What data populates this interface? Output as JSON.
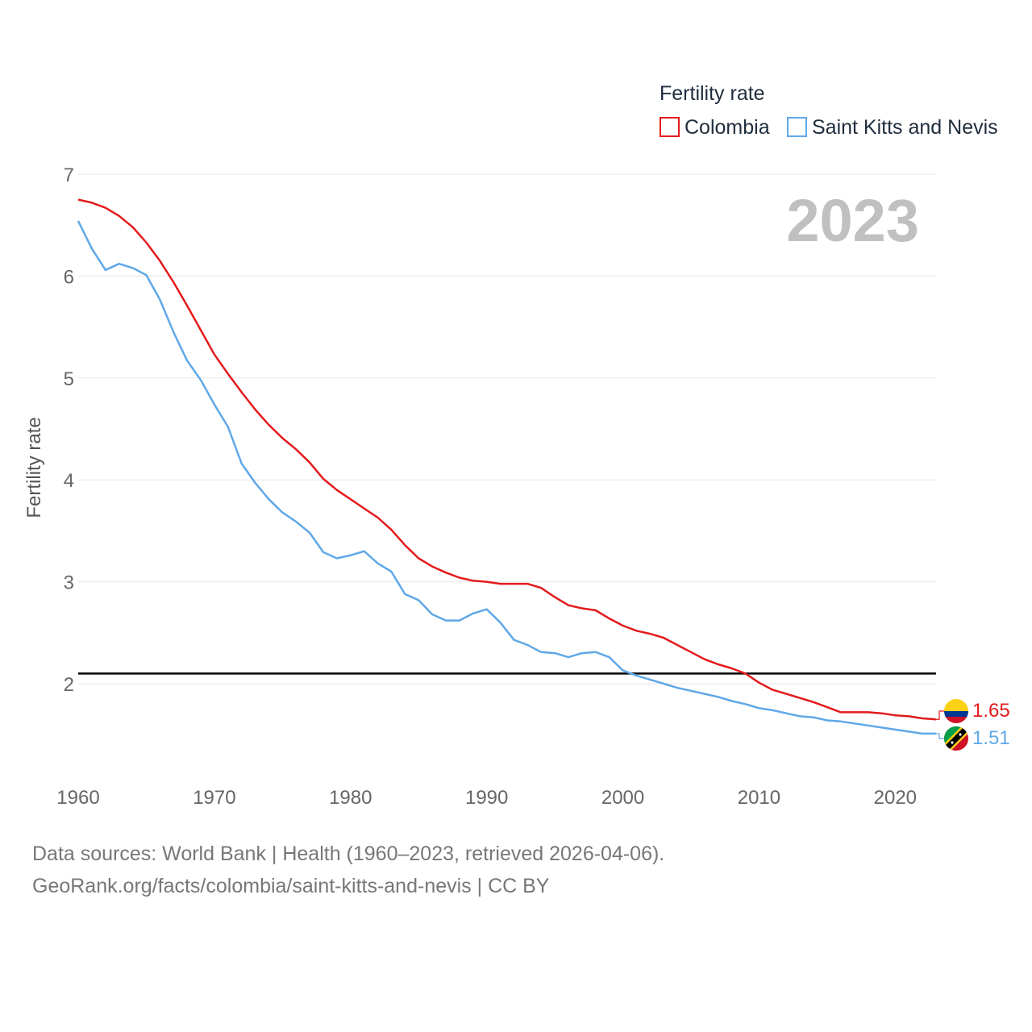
{
  "colors": {
    "colombia": "#e31a1c",
    "saint_kitts_and_nevis": "#5fa8e8",
    "grid": "#e6e6e6",
    "reference_line": "#000000"
  },
  "year_label": "2023",
  "source": {
    "line1": "Data sources: World Bank | Health (1960–2023, retrieved 2026-04-06).",
    "line2": "GeoRank.org/facts/colombia/saint-kitts-and-nevis | CC BY"
  },
  "chart_data": {
    "type": "line",
    "title": "Fertility rate",
    "xlabel": "",
    "ylabel": "Fertility rate",
    "xlim": [
      1960,
      2023
    ],
    "ylim": [
      1.3,
      7
    ],
    "grid": true,
    "legend_position": "top-right",
    "x_ticks": [
      1960,
      1970,
      1980,
      1990,
      2000,
      2010,
      2020
    ],
    "y_ticks": [
      2,
      3,
      4,
      5,
      6,
      7
    ],
    "reference_line": 2.1,
    "x": [
      1960,
      1961,
      1962,
      1963,
      1964,
      1965,
      1966,
      1967,
      1968,
      1969,
      1970,
      1971,
      1972,
      1973,
      1974,
      1975,
      1976,
      1977,
      1978,
      1979,
      1980,
      1981,
      1982,
      1983,
      1984,
      1985,
      1986,
      1987,
      1988,
      1989,
      1990,
      1991,
      1992,
      1993,
      1994,
      1995,
      1996,
      1997,
      1998,
      1999,
      2000,
      2001,
      2002,
      2003,
      2004,
      2005,
      2006,
      2007,
      2008,
      2009,
      2010,
      2011,
      2012,
      2013,
      2014,
      2015,
      2016,
      2017,
      2018,
      2019,
      2020,
      2021,
      2022,
      2023
    ],
    "series": [
      {
        "name": "Colombia",
        "color_key": "colombia",
        "end_value_label": "1.65",
        "values": [
          6.75,
          6.72,
          6.67,
          6.59,
          6.48,
          6.33,
          6.15,
          5.94,
          5.71,
          5.47,
          5.23,
          5.04,
          4.86,
          4.69,
          4.54,
          4.41,
          4.3,
          4.17,
          4.01,
          3.9,
          3.81,
          3.72,
          3.63,
          3.51,
          3.36,
          3.23,
          3.15,
          3.09,
          3.04,
          3.01,
          3.0,
          2.98,
          2.98,
          2.98,
          2.94,
          2.85,
          2.77,
          2.74,
          2.72,
          2.64,
          2.57,
          2.52,
          2.49,
          2.45,
          2.38,
          2.31,
          2.24,
          2.19,
          2.15,
          2.1,
          2.01,
          1.94,
          1.9,
          1.86,
          1.82,
          1.77,
          1.72,
          1.72,
          1.72,
          1.71,
          1.69,
          1.68,
          1.66,
          1.65
        ]
      },
      {
        "name": "Saint Kitts and Nevis",
        "color_key": "saint_kitts_and_nevis",
        "end_value_label": "1.51",
        "values": [
          6.54,
          6.27,
          6.06,
          6.12,
          6.08,
          6.01,
          5.77,
          5.45,
          5.17,
          4.98,
          4.74,
          4.52,
          4.16,
          3.97,
          3.81,
          3.68,
          3.59,
          3.48,
          3.29,
          3.23,
          3.26,
          3.3,
          3.18,
          3.1,
          2.88,
          2.82,
          2.68,
          2.62,
          2.62,
          2.69,
          2.73,
          2.6,
          2.43,
          2.38,
          2.31,
          2.3,
          2.26,
          2.3,
          2.31,
          2.26,
          2.13,
          2.08,
          2.04,
          2.0,
          1.96,
          1.93,
          1.9,
          1.87,
          1.83,
          1.8,
          1.76,
          1.74,
          1.71,
          1.68,
          1.67,
          1.64,
          1.63,
          1.61,
          1.59,
          1.57,
          1.55,
          1.53,
          1.51,
          1.51
        ]
      }
    ]
  }
}
